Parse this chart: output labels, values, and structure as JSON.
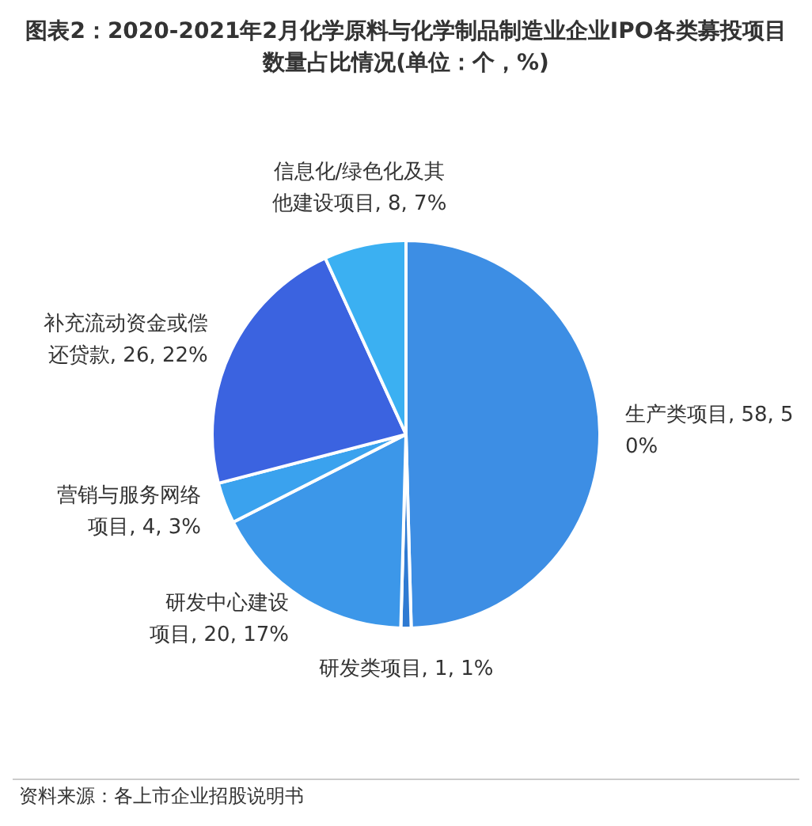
{
  "chart_data": {
    "type": "pie",
    "title": "图表2：2020-2021年2月化学原料与化学制品制造业企业IPO各类募投项目数量占比情况(单位：个，%)",
    "categories": [
      "生产类项目",
      "研发类项目",
      "研发中心建设项目",
      "营销与服务网络项目",
      "补充流动资金或偿还贷款",
      "信息化/绿色化及其他建设项目"
    ],
    "values": [
      58,
      1,
      20,
      4,
      26,
      8
    ],
    "value_labels": [
      "58, 50%",
      "1, 1%",
      "20, 17%",
      "4, 3%",
      "26, 22%",
      "8, 7%"
    ],
    "colors": [
      "#3d8ee4",
      "#2f7ad2",
      "#3c97e9",
      "#3aa2ee",
      "#3b63e0",
      "#3bb0f2"
    ],
    "legend": false,
    "annotations": [
      "资料来源：各上市企业招股说明书"
    ]
  }
}
